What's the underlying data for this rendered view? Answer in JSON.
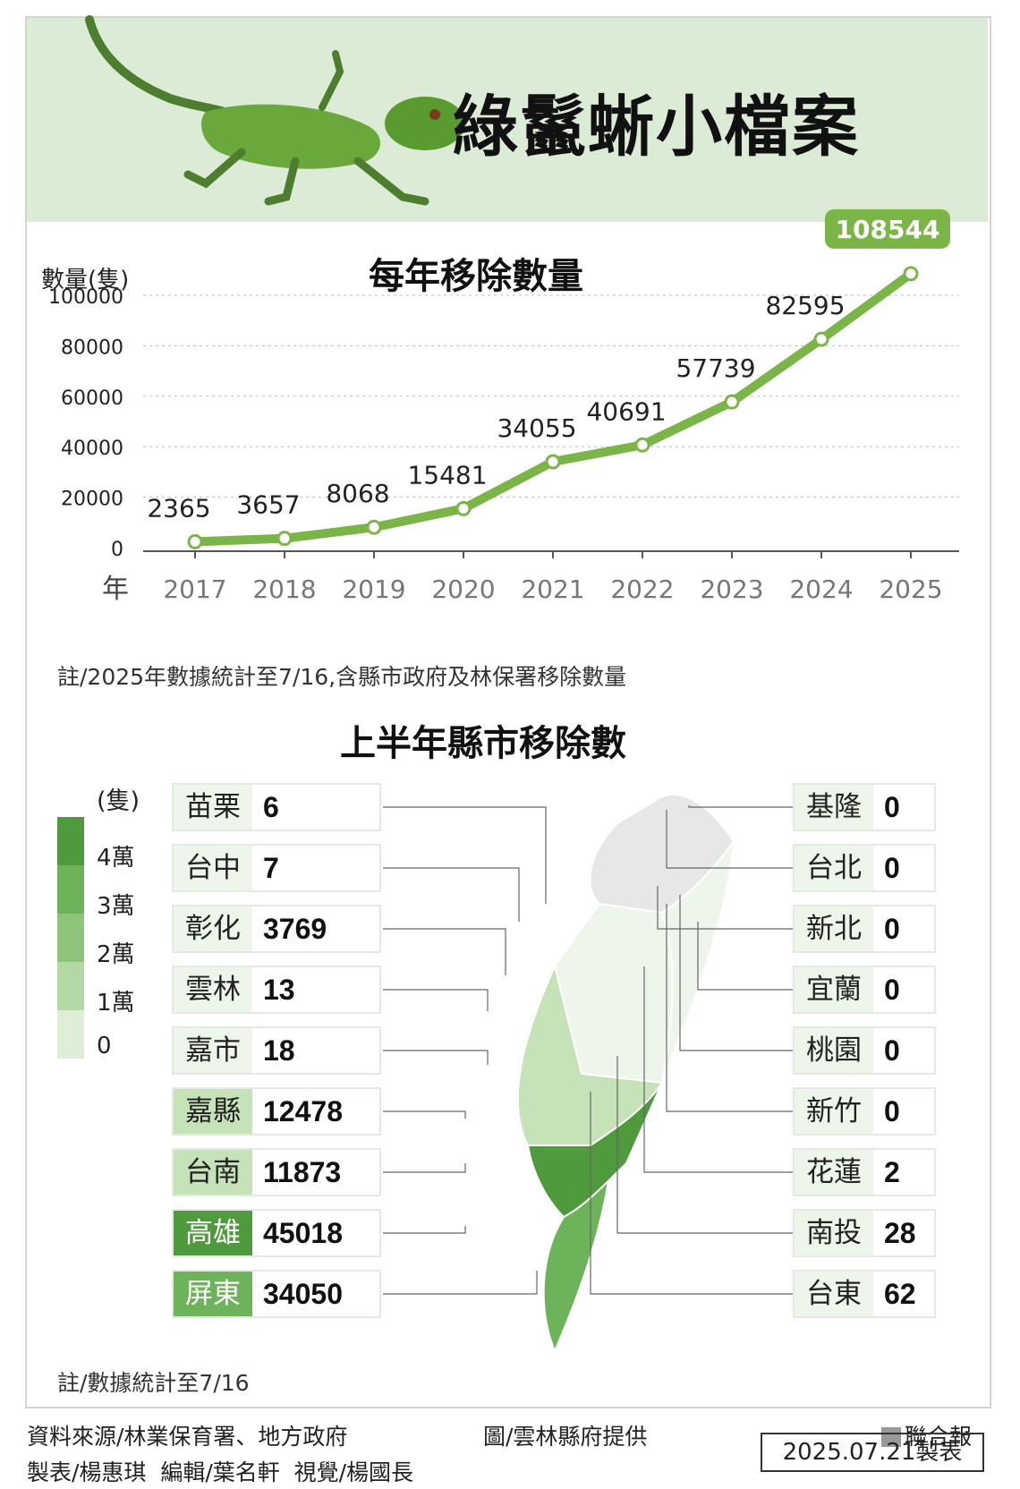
{
  "header": {
    "title": "綠鬣蜥小檔案"
  },
  "chart_data": {
    "type": "line",
    "title": "每年移除數量",
    "ylabel": "數量(隻)",
    "xlabel": "年",
    "x": [
      "2017",
      "2018",
      "2019",
      "2020",
      "2021",
      "2022",
      "2023",
      "2024",
      "2025"
    ],
    "values": [
      2365,
      3657,
      8068,
      15481,
      34055,
      40691,
      57739,
      82595,
      108544
    ],
    "data_labels": [
      "2365",
      "3657",
      "8068",
      "15481",
      "34055",
      "40691",
      "57739",
      "82595",
      "108544"
    ],
    "y_ticks": [
      "0",
      "20000",
      "40000",
      "60000",
      "80000",
      "100000"
    ],
    "ylim": [
      0,
      100000
    ],
    "grid": true,
    "highlight_last": true,
    "line_color": "#7bb547"
  },
  "chart_note": "註/2025年數據統計至7/16,含縣市政府及林保署移除數量",
  "map": {
    "title": "上半年縣市移除數",
    "legend_unit": "(隻)",
    "legend_ticks": [
      "4萬",
      "3萬",
      "2萬",
      "1萬",
      "0"
    ],
    "legend_colors": [
      "#4e9a3c",
      "#6cb35a",
      "#8dc57a",
      "#b3d8a4",
      "#dfeed7"
    ],
    "left_counties": [
      {
        "name": "苗栗",
        "value": "6",
        "color": "#eef5ea"
      },
      {
        "name": "台中",
        "value": "7",
        "color": "#eef5ea"
      },
      {
        "name": "彰化",
        "value": "3769",
        "color": "#eef5ea"
      },
      {
        "name": "雲林",
        "value": "13",
        "color": "#eef5ea"
      },
      {
        "name": "嘉市",
        "value": "18",
        "color": "#eef5ea"
      },
      {
        "name": "嘉縣",
        "value": "12478",
        "color": "#c6e2b8"
      },
      {
        "name": "台南",
        "value": "11873",
        "color": "#c6e2b8"
      },
      {
        "name": "高雄",
        "value": "45018",
        "color": "#4e9a3c"
      },
      {
        "name": "屏東",
        "value": "34050",
        "color": "#6cb35a"
      }
    ],
    "right_counties": [
      {
        "name": "基隆",
        "value": "0"
      },
      {
        "name": "台北",
        "value": "0"
      },
      {
        "name": "新北",
        "value": "0"
      },
      {
        "name": "宜蘭",
        "value": "0"
      },
      {
        "name": "桃園",
        "value": "0"
      },
      {
        "name": "新竹",
        "value": "0"
      },
      {
        "name": "花蓮",
        "value": "2"
      },
      {
        "name": "南投",
        "value": "28"
      },
      {
        "name": "台東",
        "value": "62"
      }
    ],
    "note": "註/數據統計至7/16"
  },
  "footer": {
    "source": "資料來源/林業保育署、地方政府",
    "image_credit": "圖/雲林縣府提供",
    "publisher": "聯合報",
    "credits": "製表/楊惠琪  編輯/葉名軒  視覺/楊國長",
    "date": "2025.07.21製表"
  }
}
